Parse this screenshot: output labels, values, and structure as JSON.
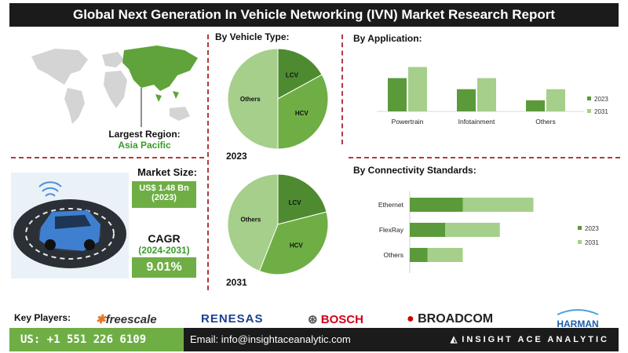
{
  "header": {
    "title": "Global Next Generation In Vehicle Networking (IVN) Market Research Report"
  },
  "region": {
    "label": "Largest Region:",
    "value": "Asia Pacific"
  },
  "market": {
    "size_label": "Market Size:",
    "size_value": "US$ 1.48 Bn",
    "size_year": "(2023)",
    "cagr_label": "CAGR",
    "cagr_period": "(2024-2031)",
    "cagr_value": "9.01%"
  },
  "footer": {
    "key_players_label": "Key Players:",
    "phone": "US: +1 551 226 6109",
    "email": "Email: info@insightaceanalytic.com",
    "brand": "INSIGHT ACE ANALYTIC"
  },
  "logos": {
    "freescale": "freescale",
    "renesas": "RENESAS",
    "bosch": "BOSCH",
    "broadcom": "BROADCOM",
    "harman": "HARMAN"
  },
  "colors": {
    "dark_green": "#5a9a3a",
    "mid_green": "#6fae45",
    "light_green": "#a5cf8a",
    "lcv_dark": "#4e8b30",
    "divider": "#b23a3a"
  },
  "chart_data": [
    {
      "type": "pie",
      "title": "By Vehicle Type:",
      "year": "2023",
      "slices": [
        {
          "label": "LCV",
          "value": 17
        },
        {
          "label": "HCV",
          "value": 33
        },
        {
          "label": "Others",
          "value": 50
        }
      ]
    },
    {
      "type": "pie",
      "year": "2031",
      "slices": [
        {
          "label": "LCV",
          "value": 21
        },
        {
          "label": "HCV",
          "value": 35
        },
        {
          "label": "Others",
          "value": 44
        }
      ]
    },
    {
      "type": "bar",
      "title": "By Application:",
      "categories": [
        "Powertrain",
        "Infotainment",
        "Others"
      ],
      "series": [
        {
          "name": "2023",
          "values": [
            45,
            30,
            15
          ]
        },
        {
          "name": "2031",
          "values": [
            60,
            45,
            30
          ]
        }
      ],
      "ylim": [
        0,
        70
      ],
      "legend": "right"
    },
    {
      "type": "bar",
      "orientation": "horizontal-stacked",
      "title": "By Connectivity Standards:",
      "categories": [
        "Ethernet",
        "FlexRay",
        "Others"
      ],
      "series": [
        {
          "name": "2023",
          "values": [
            30,
            20,
            10
          ]
        },
        {
          "name": "2031",
          "values": [
            40,
            31,
            20
          ]
        }
      ],
      "xlim": [
        0,
        80
      ],
      "legend": "right"
    }
  ]
}
